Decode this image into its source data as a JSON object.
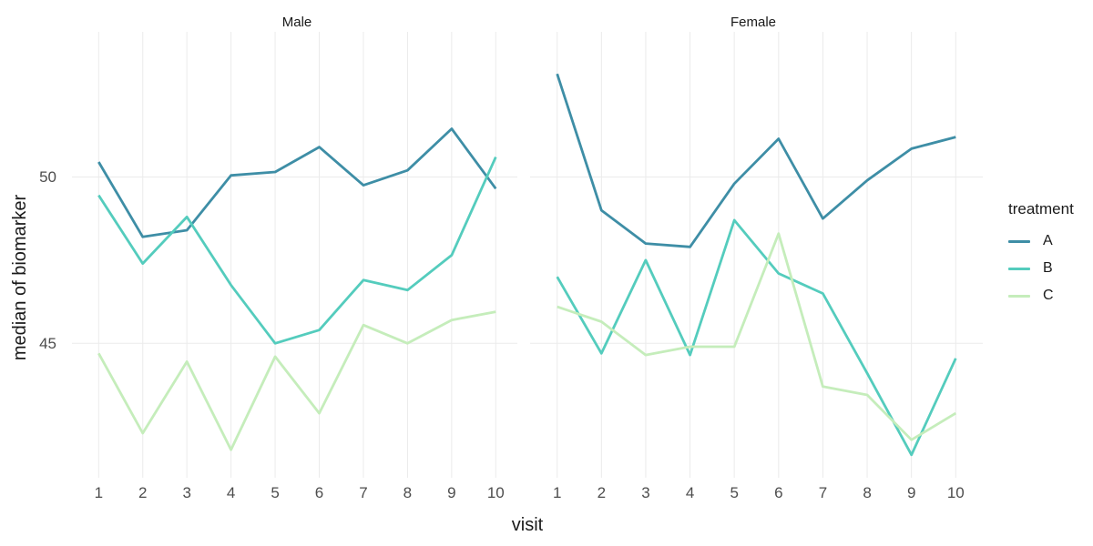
{
  "chart_data": {
    "type": "line",
    "faceting": {
      "facet_labels": [
        "Male",
        "Female"
      ]
    },
    "x": [
      1,
      2,
      3,
      4,
      5,
      6,
      7,
      8,
      9,
      10
    ],
    "x_ticks": [
      "1",
      "2",
      "3",
      "4",
      "5",
      "6",
      "7",
      "8",
      "9",
      "10"
    ],
    "xlabel": "visit",
    "ylabel": "median of biomarker",
    "y_tick_labels": [
      "50",
      "45"
    ],
    "y_tick_values": [
      50,
      45
    ],
    "ylim_approx": [
      41.0,
      54.4
    ],
    "grid": "major-only",
    "legend": {
      "title": "treatment",
      "position": "right",
      "entries": [
        {
          "label": "A",
          "color": "#3e8ea6"
        },
        {
          "label": "B",
          "color": "#54ccbd"
        },
        {
          "label": "C",
          "color": "#c5edbb"
        }
      ]
    },
    "panels": [
      {
        "facet": "Male",
        "series": [
          {
            "name": "A",
            "color": "#3e8ea6",
            "values": [
              50.45,
              48.2,
              48.4,
              50.05,
              50.15,
              50.9,
              49.75,
              50.2,
              51.45,
              49.65
            ]
          },
          {
            "name": "B",
            "color": "#54ccbd",
            "values": [
              49.45,
              47.4,
              48.8,
              46.75,
              45.0,
              45.4,
              46.9,
              46.6,
              47.65,
              50.6
            ]
          },
          {
            "name": "C",
            "color": "#c5edbb",
            "values": [
              44.7,
              42.3,
              44.45,
              41.8,
              44.6,
              42.9,
              45.55,
              45.0,
              45.7,
              45.95
            ]
          }
        ]
      },
      {
        "facet": "Female",
        "series": [
          {
            "name": "A",
            "color": "#3e8ea6",
            "values": [
              53.1,
              49.0,
              48.0,
              47.9,
              49.8,
              51.15,
              48.75,
              49.9,
              50.85,
              51.2
            ]
          },
          {
            "name": "B",
            "color": "#54ccbd",
            "values": [
              47.0,
              44.7,
              47.5,
              44.65,
              48.7,
              47.1,
              46.5,
              44.1,
              41.65,
              44.55
            ]
          },
          {
            "name": "C",
            "color": "#c5edbb",
            "values": [
              46.1,
              45.65,
              44.65,
              44.9,
              44.9,
              48.3,
              43.7,
              43.45,
              42.1,
              42.9
            ]
          }
        ]
      }
    ],
    "colors": {
      "background": "#ffffff",
      "gridline": "#ebebeb",
      "axis_text": "#4d4d4d",
      "title_text": "#1a1a1a"
    }
  }
}
